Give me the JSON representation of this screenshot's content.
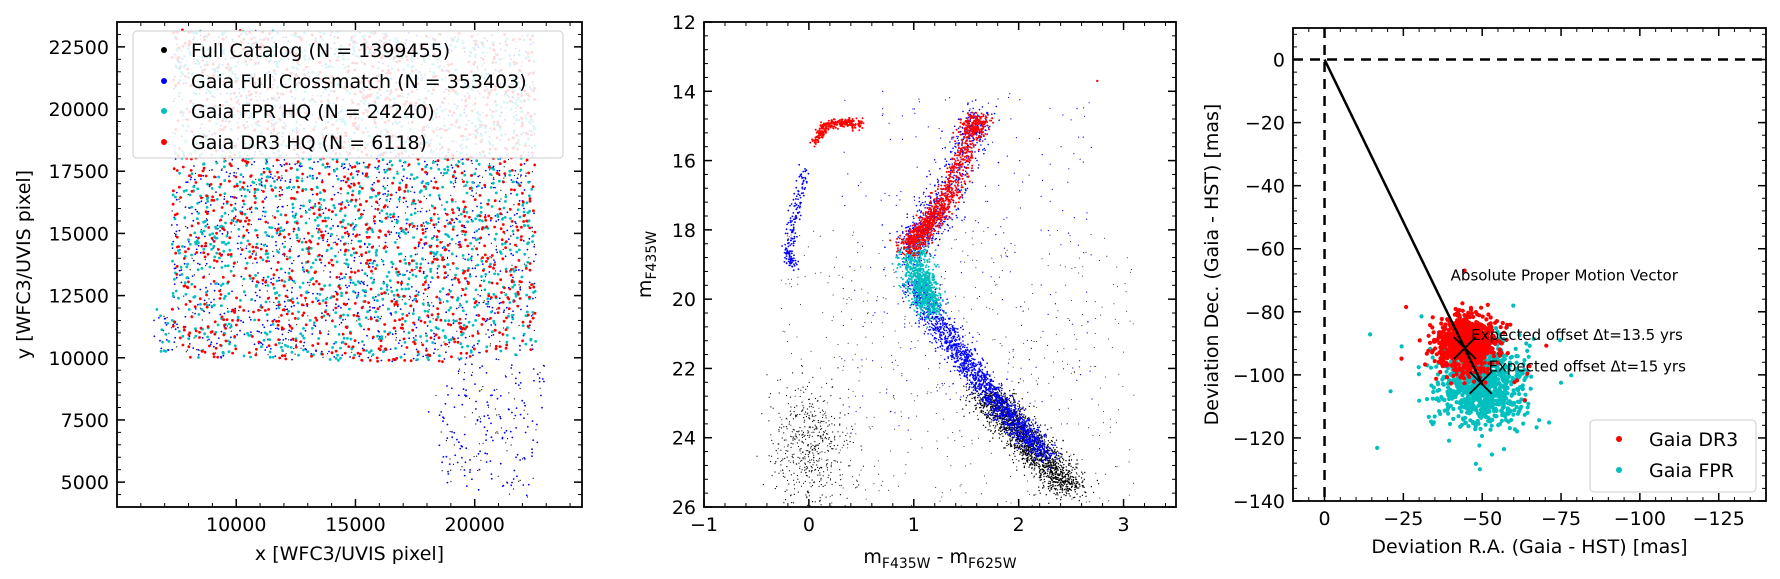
{
  "chart_data": [
    {
      "type": "scatter",
      "xlabel": "x [WFC3/UVIS pixel]",
      "ylabel": "y [WFC3/UVIS pixel]",
      "xlim": [
        5000,
        24500
      ],
      "ylim": [
        4000,
        23500
      ],
      "xticks": [
        10000,
        15000,
        20000
      ],
      "yticks": [
        5000,
        7500,
        10000,
        12500,
        15000,
        17500,
        20000,
        22500
      ],
      "xtick_labels": [
        "10000",
        "15000",
        "20000"
      ],
      "ytick_labels": [
        "5000",
        "7500",
        "10000",
        "12500",
        "15000",
        "17500",
        "20000",
        "22500"
      ],
      "legend_position": "top-left",
      "series": [
        {
          "name": "Full Catalog (N = 1399455)",
          "color": "#000000"
        },
        {
          "name": "Gaia Full Crossmatch (N = 353403)",
          "color": "#0000ff"
        },
        {
          "name": "Gaia FPR HQ (N = 24240)",
          "color": "#00bfbf"
        },
        {
          "name": "Gaia DR3 HQ (N = 6118)",
          "color": "#ff0000"
        }
      ],
      "footprint": {
        "main": [
          [
            7300,
            23200
          ],
          [
            22500,
            23000
          ],
          [
            22600,
            10200
          ],
          [
            18300,
            9800
          ],
          [
            8000,
            10000
          ],
          [
            7300,
            11200
          ]
        ],
        "left_strip": [
          [
            6500,
            12000
          ],
          [
            7600,
            12000
          ],
          [
            7600,
            10200
          ],
          [
            6500,
            10200
          ]
        ],
        "tilted_chip": [
          [
            19600,
            10800
          ],
          [
            23200,
            9700
          ],
          [
            22500,
            4300
          ],
          [
            18700,
            4900
          ],
          [
            17900,
            7600
          ]
        ]
      }
    },
    {
      "type": "scatter",
      "xlabel": "m",
      "xlabel_sub": "F435W",
      "xlabel_sep": " - m",
      "xlabel_sub2": "F625W",
      "ylabel": "m",
      "ylabel_sub": "F435W",
      "xlim": [
        -1,
        3.5
      ],
      "ylim": [
        26,
        12
      ],
      "xticks": [
        -1,
        0,
        1,
        2,
        3
      ],
      "yticks": [
        12,
        14,
        16,
        18,
        20,
        22,
        24,
        26
      ],
      "xtick_labels": [
        "−1",
        "0",
        "1",
        "2",
        "3"
      ],
      "ytick_labels": [
        "12",
        "14",
        "16",
        "18",
        "20",
        "22",
        "24",
        "26"
      ],
      "sequences": {
        "main_sequence_ridge": [
          [
            1.0,
            19.5
          ],
          [
            1.3,
            21.0
          ],
          [
            1.6,
            22.2
          ],
          [
            1.9,
            23.3
          ],
          [
            2.2,
            24.3
          ],
          [
            2.5,
            25.3
          ]
        ],
        "subgiant_branch": [
          [
            0.95,
            18.6
          ],
          [
            1.05,
            18.1
          ],
          [
            1.2,
            17.6
          ],
          [
            1.35,
            16.8
          ],
          [
            1.55,
            15.2
          ],
          [
            1.6,
            14.8
          ]
        ],
        "horizontal_branch": [
          [
            0.05,
            15.5
          ],
          [
            0.15,
            15.0
          ],
          [
            0.3,
            14.9
          ],
          [
            0.5,
            14.95
          ]
        ],
        "blue_tail": [
          [
            -0.05,
            16.2
          ],
          [
            -0.12,
            17.5
          ],
          [
            -0.2,
            18.6
          ],
          [
            -0.15,
            19.1
          ]
        ],
        "white_dwarf_cloud_center": [
          0.0,
          24.3
        ]
      }
    },
    {
      "type": "scatter",
      "xlabel": "Deviation R.A. (Gaia - HST) [mas]",
      "ylabel": "Deviation Dec. (Gaia - HST) [mas]",
      "xlim": [
        10,
        -140
      ],
      "ylim": [
        -140,
        10
      ],
      "xticks": [
        0,
        -25,
        -50,
        -75,
        -100,
        -125
      ],
      "yticks": [
        0,
        -20,
        -40,
        -60,
        -80,
        -100,
        -120,
        -140
      ],
      "xtick_labels": [
        "0",
        "−25",
        "−50",
        "−75",
        "−100",
        "−125"
      ],
      "ytick_labels": [
        "0",
        "−20",
        "−40",
        "−60",
        "−80",
        "−100",
        "−120",
        "−140"
      ],
      "legend_position": "bottom-right",
      "series": [
        {
          "name": "Gaia DR3",
          "color": "#ff0000",
          "center": [
            -45,
            -90
          ]
        },
        {
          "name": "Gaia FPR",
          "color": "#00bfbf",
          "center": [
            -50,
            -103
          ]
        }
      ],
      "vector": {
        "start": [
          0,
          0
        ],
        "end": [
          -50,
          -103
        ]
      },
      "annotations": [
        {
          "text": "Absolute Proper Motion Vector",
          "x": -40,
          "y": -70
        },
        {
          "text": "Expected offset Δt=13.5 yrs",
          "x": -46.5,
          "y": -89
        },
        {
          "text": "Expected offset Δt=15 yrs",
          "x": -52,
          "y": -99
        }
      ],
      "markers": [
        [
          -44.5,
          -91.5
        ],
        [
          -49.5,
          -102.5
        ]
      ]
    }
  ]
}
